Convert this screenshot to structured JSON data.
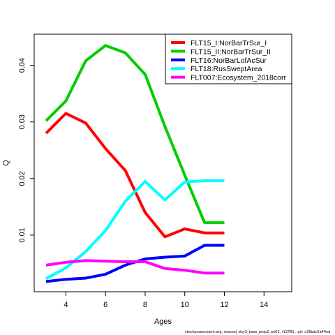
{
  "chart_data": {
    "type": "line",
    "xlabel": "Ages",
    "ylabel": "Q",
    "xlim": [
      2.4,
      15.4
    ],
    "ylim": [
      0.0,
      0.0455
    ],
    "xticks": [
      4,
      6,
      8,
      10,
      12,
      14
    ],
    "yticks": [
      0.01,
      0.02,
      0.03,
      0.04
    ],
    "grid": false,
    "legend_position": "top-right",
    "series": [
      {
        "name": "FLT15_I:NorBarTrSur_I",
        "color": "#ff0000",
        "x": [
          3,
          4,
          5,
          6,
          7,
          8,
          9,
          10,
          11,
          12
        ],
        "y": [
          0.028,
          0.0315,
          0.0298,
          0.0253,
          0.0214,
          0.014,
          0.0097,
          0.0111,
          0.0104,
          0.0104
        ]
      },
      {
        "name": "FLT15_II:NorBarTrSur_II",
        "color": "#00cd00",
        "x": [
          3,
          4,
          5,
          6,
          7,
          8,
          9,
          10,
          11,
          12
        ],
        "y": [
          0.0302,
          0.0337,
          0.0408,
          0.0435,
          0.0422,
          0.0384,
          0.0292,
          0.0206,
          0.0122,
          0.0122
        ]
      },
      {
        "name": "FLT16:NorBarLofAcSur",
        "color": "#0000ff",
        "x": [
          3,
          4,
          5,
          6,
          7,
          8,
          9,
          10,
          11,
          12
        ],
        "y": [
          0.0018,
          0.0022,
          0.0024,
          0.0031,
          0.0047,
          0.0058,
          0.0061,
          0.0063,
          0.0082,
          0.0082
        ]
      },
      {
        "name": "FLT18:RusSweptArea",
        "color": "#00ffff",
        "x": [
          3,
          4,
          5,
          6,
          7,
          8,
          9,
          10,
          11,
          12
        ],
        "y": [
          0.0023,
          0.0042,
          0.0071,
          0.0108,
          0.016,
          0.0195,
          0.0162,
          0.0194,
          0.0196,
          0.0196
        ]
      },
      {
        "name": "FLT007:Ecosystem_2018corr",
        "color": "#ff00ff",
        "x": [
          3,
          4,
          5,
          6,
          7,
          8,
          9,
          10,
          11,
          12
        ],
        "y": [
          0.0047,
          0.0052,
          0.0055,
          0.0054,
          0.0053,
          0.0053,
          0.0041,
          0.0038,
          0.0033,
          0.0033
        ]
      }
    ]
  },
  "footer": "stockassessment.org,  neacod_day3_base_prop2_an01,  r13781 ,  git: c28bdc2a44ed"
}
